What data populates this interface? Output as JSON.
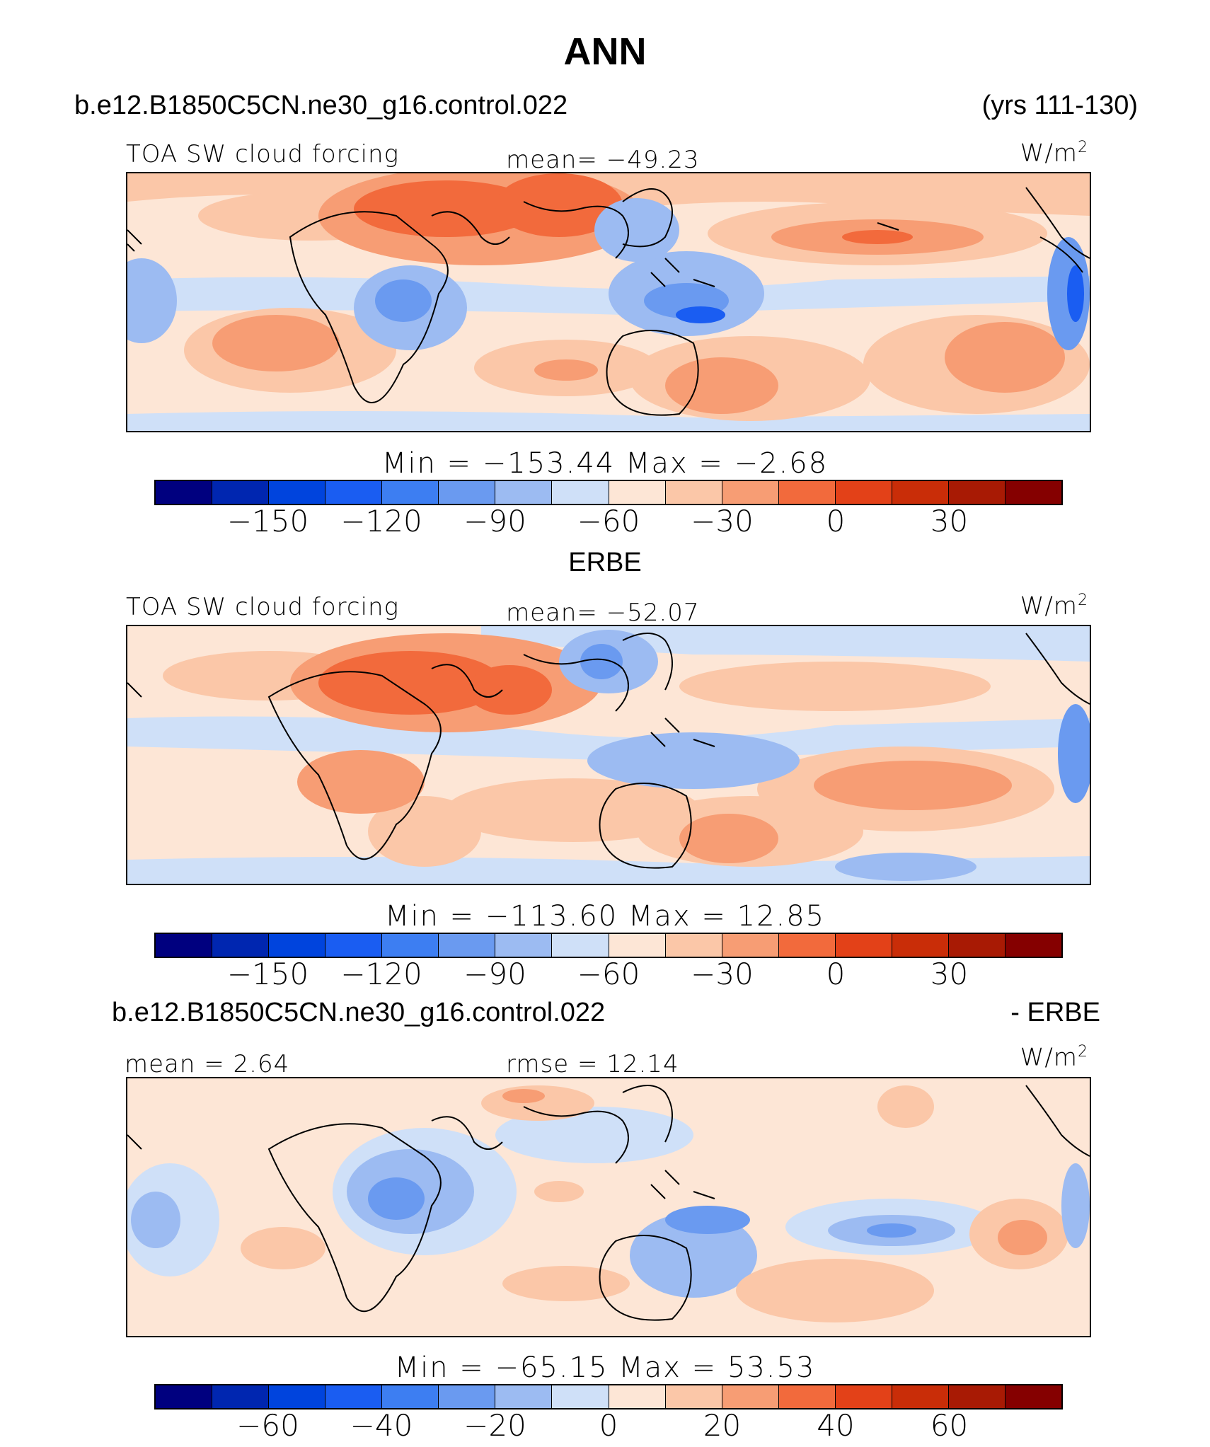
{
  "title": "ANN",
  "header": {
    "case": "b.e12.B1850C5CN.ne30_g16.control.022",
    "years": "(yrs 111-130)"
  },
  "panels": [
    {
      "variable": "TOA SW cloud forcing",
      "stat": "mean=  −49.23",
      "unit": "W/m",
      "unit_exp": "2",
      "minmax": "Min  =  −153.44  Max  =    −2.68"
    },
    {
      "section_label": "ERBE",
      "variable": "TOA SW cloud forcing",
      "stat": "mean=  −52.07",
      "unit": "W/m",
      "unit_exp": "2",
      "minmax": "Min  =  −113.60  Max  =    12.85"
    },
    {
      "section_label_left": "b.e12.B1850C5CN.ne30_g16.control.022",
      "section_label_right": "- ERBE",
      "stat_left": "mean  =    2.64",
      "stat_center": "rmse  =    12.14",
      "unit": "W/m",
      "unit_exp": "2",
      "minmax": "Min  =  −65.15  Max  =    53.53"
    }
  ],
  "colors": {
    "palette": [
      "#00007f",
      "#0026b0",
      "#0044dd",
      "#1a5df2",
      "#3d7ef2",
      "#6a9af0",
      "#9cbbf2",
      "#cfe0f8",
      "#fde6d6",
      "#fbc7a8",
      "#f79d74",
      "#f26a3c",
      "#e34118",
      "#c92d08",
      "#a81a04",
      "#850000"
    ],
    "ocean_base": "#fde6d6",
    "coast": "#000000"
  },
  "chart_data": [
    {
      "type": "heatmap",
      "title": "TOA SW cloud forcing",
      "subtitle": "b.e12.B1850C5CN.ne30_g16.control.022",
      "units": "W/m2",
      "mean": -49.23,
      "min": -153.44,
      "max": -2.68,
      "levels": [
        -165,
        -150,
        -135,
        -120,
        -105,
        -90,
        -75,
        -60,
        -45,
        -30,
        -15,
        0,
        15,
        30,
        45
      ],
      "colorbar_tick_labels": [
        "−150",
        "−120",
        "−90",
        "−60",
        "−30",
        "0",
        "30"
      ],
      "colorbar_tick_values": [
        -150,
        -120,
        -90,
        -60,
        -30,
        0,
        30
      ],
      "colorbar_range": [
        -180,
        60
      ],
      "xlim_deg_lon": [
        -30,
        300
      ],
      "ylim_deg_lat": [
        -50,
        50
      ]
    },
    {
      "type": "heatmap",
      "title": "TOA SW cloud forcing",
      "subtitle": "ERBE",
      "units": "W/m2",
      "mean": -52.07,
      "min": -113.6,
      "max": 12.85,
      "levels": [
        -165,
        -150,
        -135,
        -120,
        -105,
        -90,
        -75,
        -60,
        -45,
        -30,
        -15,
        0,
        15,
        30,
        45
      ],
      "colorbar_tick_labels": [
        "−150",
        "−120",
        "−90",
        "−60",
        "−30",
        "0",
        "30"
      ],
      "colorbar_tick_values": [
        -150,
        -120,
        -90,
        -60,
        -30,
        0,
        30
      ],
      "colorbar_range": [
        -180,
        60
      ]
    },
    {
      "type": "heatmap",
      "title": "b.e12.B1850C5CN.ne30_g16.control.022 - ERBE",
      "units": "W/m2",
      "mean": 2.64,
      "rmse": 12.14,
      "min": -65.15,
      "max": 53.53,
      "levels": [
        -70,
        -60,
        -50,
        -40,
        -30,
        -20,
        -10,
        0,
        10,
        20,
        30,
        40,
        50,
        60,
        70
      ],
      "colorbar_tick_labels": [
        "−60",
        "−40",
        "−20",
        "0",
        "20",
        "40",
        "60"
      ],
      "colorbar_tick_values": [
        -60,
        -40,
        -20,
        0,
        20,
        40,
        60
      ],
      "colorbar_range": [
        -80,
        80
      ]
    }
  ]
}
